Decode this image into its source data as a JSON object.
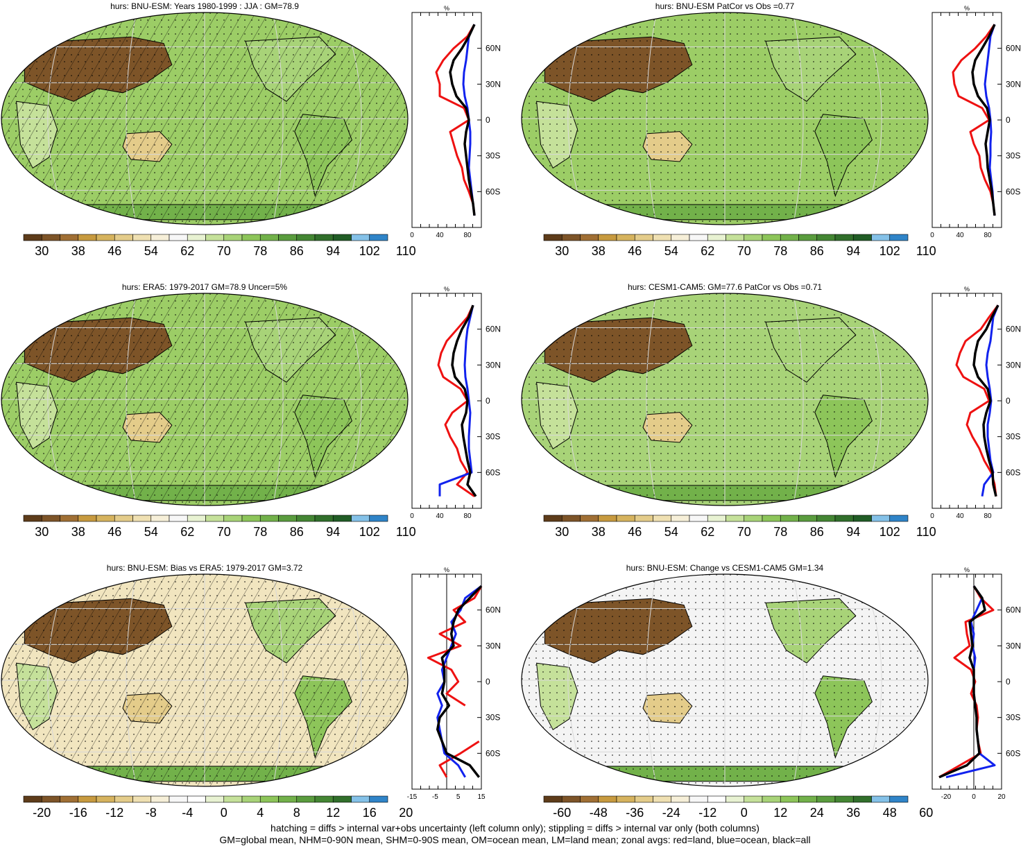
{
  "palette_abs": [
    "#5e3c1a",
    "#7d5428",
    "#a06f34",
    "#c79a3f",
    "#d6b35e",
    "#e4cc8a",
    "#efe0b2",
    "#f6efd8",
    "#f7f7f7",
    "#e8f2d2",
    "#c5e19a",
    "#a8d378",
    "#8dc55a",
    "#72b14a",
    "#5a9c3e",
    "#448633",
    "#316f2b",
    "#215d26",
    "#84c1e8",
    "#2f84c8"
  ],
  "palette_diff": [
    "#5e3c1a",
    "#7d5428",
    "#a06f34",
    "#c79a3f",
    "#d6b35e",
    "#e4cc8a",
    "#efe0b2",
    "#f6efd8",
    "#f7f7f7",
    "#ffffff",
    "#e8f2d2",
    "#c5e19a",
    "#a8d378",
    "#8dc55a",
    "#72b14a",
    "#5a9c3e",
    "#448633",
    "#316f2b",
    "#84c1e8",
    "#2f84c8"
  ],
  "zonal_lat_labels": [
    "60N",
    "30N",
    "0",
    "30S",
    "60S"
  ],
  "zonal_unit": "%",
  "panels": [
    {
      "title": "hurs: BNU-ESM: Years 1980-1999 : JJA : GM=78.9",
      "base_color": "#9ccd66",
      "hatch": true,
      "colorbar_labels": [
        "30",
        "38",
        "46",
        "54",
        "62",
        "70",
        "78",
        "86",
        "94",
        "102",
        "110"
      ],
      "palette": "abs",
      "zonal_ticks": [
        "0",
        "40",
        "80"
      ],
      "zonal_xlim": [
        0,
        100
      ],
      "zonal_series": {
        "lat": [
          80,
          70,
          60,
          50,
          40,
          30,
          20,
          10,
          0,
          -10,
          -20,
          -30,
          -40,
          -50,
          -60,
          -70,
          -80
        ],
        "land": [
          90,
          80,
          60,
          45,
          35,
          40,
          40,
          75,
          82,
          55,
          60,
          65,
          72,
          75,
          82,
          88,
          90
        ],
        "ocean": [
          90,
          82,
          80,
          78,
          75,
          74,
          76,
          80,
          82,
          84,
          84,
          83,
          82,
          84,
          86,
          88,
          90
        ],
        "all": [
          90,
          82,
          72,
          60,
          55,
          58,
          64,
          78,
          82,
          78,
          76,
          78,
          80,
          82,
          85,
          88,
          90
        ]
      }
    },
    {
      "title": "hurs: BNU-ESM PatCor vs Obs =0.77",
      "base_color": "#9ccd66",
      "hatch": false,
      "colorbar_labels": [
        "30",
        "38",
        "46",
        "54",
        "62",
        "70",
        "78",
        "86",
        "94",
        "102",
        "110"
      ],
      "palette": "abs",
      "zonal_ticks": [
        "0",
        "40",
        "80"
      ],
      "zonal_xlim": [
        0,
        100
      ],
      "zonal_series": {
        "lat": [
          80,
          70,
          60,
          50,
          40,
          30,
          20,
          10,
          0,
          -10,
          -20,
          -30,
          -40,
          -50,
          -60,
          -70,
          -80
        ],
        "land": [
          90,
          78,
          62,
          42,
          30,
          32,
          38,
          72,
          82,
          55,
          60,
          68,
          70,
          76,
          84,
          88,
          90
        ],
        "ocean": [
          90,
          84,
          82,
          80,
          78,
          76,
          78,
          82,
          84,
          85,
          84,
          84,
          83,
          85,
          87,
          88,
          90
        ],
        "all": [
          90,
          82,
          72,
          62,
          58,
          60,
          66,
          79,
          83,
          80,
          77,
          79,
          80,
          83,
          86,
          88,
          90
        ]
      }
    },
    {
      "title": "hurs: ERA5: 1979-2017 GM=78.9 Uncer=5%",
      "base_color": "#9ccd66",
      "hatch": true,
      "colorbar_labels": [
        "30",
        "38",
        "46",
        "54",
        "62",
        "70",
        "78",
        "86",
        "94",
        "102",
        "110"
      ],
      "palette": "abs",
      "zonal_ticks": [
        "0",
        "40",
        "80"
      ],
      "zonal_xlim": [
        0,
        100
      ],
      "zonal_series": {
        "lat": [
          80,
          70,
          60,
          50,
          40,
          30,
          20,
          10,
          0,
          -10,
          -20,
          -30,
          -40,
          -50,
          -60,
          -70,
          -80
        ],
        "land": [
          88,
          80,
          65,
          50,
          42,
          38,
          45,
          70,
          80,
          58,
          48,
          55,
          65,
          70,
          80,
          65,
          90
        ],
        "ocean": [
          88,
          84,
          80,
          78,
          77,
          76,
          77,
          80,
          82,
          84,
          83,
          82,
          82,
          84,
          86,
          40,
          40
        ],
        "all": [
          88,
          82,
          72,
          65,
          60,
          58,
          62,
          76,
          80,
          78,
          72,
          74,
          77,
          80,
          84,
          80,
          92
        ]
      }
    },
    {
      "title": "hurs: CESM1-CAM5: GM=77.6 PatCor vs Obs =0.71",
      "base_color": "#a8d378",
      "hatch": false,
      "colorbar_labels": [
        "30",
        "38",
        "46",
        "54",
        "62",
        "70",
        "78",
        "86",
        "94",
        "102",
        "110"
      ],
      "palette": "abs",
      "zonal_ticks": [
        "0",
        "40",
        "80"
      ],
      "zonal_xlim": [
        0,
        100
      ],
      "zonal_series": {
        "lat": [
          80,
          70,
          60,
          50,
          40,
          30,
          20,
          10,
          0,
          -10,
          -20,
          -30,
          -40,
          -50,
          -60,
          -70,
          -80
        ],
        "land": [
          95,
          82,
          70,
          48,
          40,
          35,
          45,
          75,
          82,
          55,
          50,
          58,
          68,
          75,
          85,
          90,
          92
        ],
        "ocean": [
          95,
          88,
          86,
          84,
          80,
          78,
          80,
          83,
          85,
          83,
          80,
          80,
          82,
          84,
          88,
          75,
          72
        ],
        "all": [
          95,
          86,
          78,
          66,
          62,
          60,
          66,
          80,
          84,
          78,
          74,
          75,
          78,
          82,
          87,
          88,
          92
        ]
      }
    },
    {
      "title": "hurs: BNU-ESM: Bias vs ERA5: 1979-2017 GM=3.72",
      "base_color": "#f1e5bf",
      "hatch": true,
      "colorbar_labels": [
        "-20",
        "-16",
        "-12",
        "-8",
        "-4",
        "0",
        "4",
        "8",
        "12",
        "16",
        "20"
      ],
      "palette": "diff",
      "zonal_ticks": [
        "-15",
        "-5",
        "5",
        "15"
      ],
      "zonal_xlim": [
        -15,
        15
      ],
      "zonal_series": {
        "lat": [
          80,
          70,
          60,
          50,
          40,
          30,
          20,
          10,
          0,
          -10,
          -20,
          -30,
          -40,
          -50,
          -60,
          -70,
          -80
        ],
        "land": [
          15,
          12,
          3,
          8,
          -3,
          6,
          -8,
          2,
          5,
          0,
          8,
          null,
          null,
          14,
          6,
          -3,
          0
        ],
        "ocean": [
          15,
          8,
          6,
          2,
          4,
          2,
          0,
          -2,
          -1,
          -4,
          -2,
          -4,
          -3,
          -2,
          -1,
          5,
          8
        ],
        "all": [
          15,
          10,
          5,
          3,
          2,
          3,
          -2,
          -1,
          -1,
          -2,
          1,
          -3,
          -4,
          -2,
          0,
          10,
          14
        ]
      }
    },
    {
      "title": "hurs: BNU-ESM: Change vs CESM1-CAM5 GM=1.34",
      "base_color": "#f4f4f4",
      "hatch": false,
      "colorbar_labels": [
        "-60",
        "-48",
        "-36",
        "-24",
        "-12",
        "0",
        "12",
        "24",
        "36",
        "48",
        "60"
      ],
      "palette": "diff",
      "zonal_ticks": [
        "-20",
        "0",
        "20"
      ],
      "zonal_xlim": [
        -30,
        20
      ],
      "zonal_series": {
        "lat": [
          80,
          70,
          60,
          50,
          40,
          30,
          20,
          10,
          0,
          -10,
          -20,
          -30,
          -40,
          -50,
          -60,
          -70,
          -80
        ],
        "land": [
          0,
          5,
          14,
          -6,
          -5,
          -3,
          -14,
          -2,
          1,
          -2,
          2,
          3,
          2,
          3,
          5,
          -10,
          -25
        ],
        "ocean": [
          0,
          6,
          2,
          -2,
          0,
          -1,
          1,
          0,
          0,
          0,
          1,
          2,
          2,
          3,
          4,
          15,
          -20
        ],
        "all": [
          0,
          6,
          8,
          -3,
          -2,
          -1,
          -3,
          0,
          0,
          0,
          1,
          2,
          2,
          3,
          4,
          -5,
          -25
        ]
      }
    }
  ],
  "footer_line1": "hatching = diffs > internal var+obs uncertainty (left column only); stippling = diffs > internal var only (both columns)",
  "footer_line2": "GM=global mean, NHM=0-90N mean, SHM=0-90S mean, OM=ocean mean, LM=land mean; zonal avgs: red=land, blue=ocean, black=all"
}
